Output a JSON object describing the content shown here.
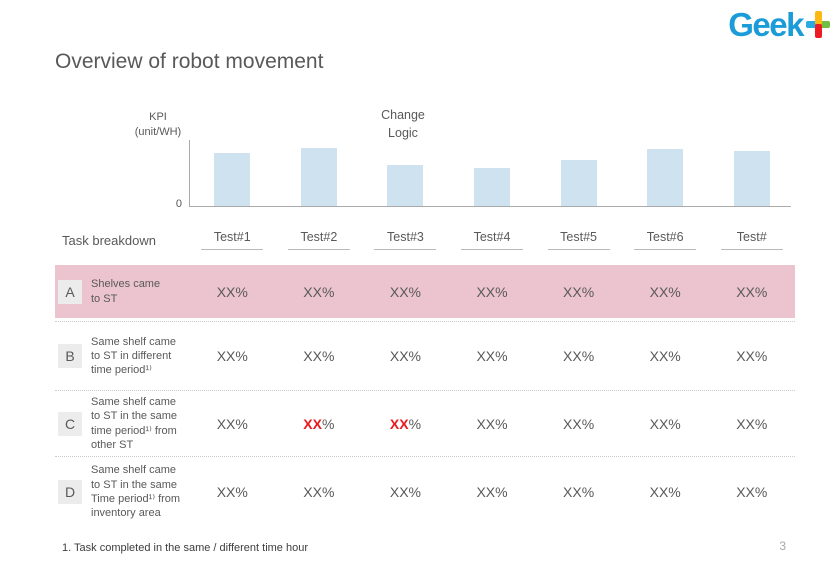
{
  "slide": {
    "title": "Overview of robot movement",
    "footnote": "1. Task completed in the same / different time hour",
    "page_number": "3",
    "logo": {
      "text": "Geek",
      "text_color": "#1b9cd8",
      "plus_colors": {
        "top": "#fdb913",
        "bottom": "#ed1c24",
        "left": "#29abe2",
        "right": "#72bf44"
      }
    }
  },
  "chart_data": {
    "type": "bar",
    "categories": [
      "Test#1",
      "Test#2",
      "Test#3",
      "Test#4",
      "Test#5",
      "Test#6",
      "Test#"
    ],
    "values": [
      80,
      88,
      62,
      57,
      70,
      86,
      83
    ],
    "title": "",
    "xlabel": "",
    "ylabel": "KPI\n(unit/WH)",
    "ylim": [
      0,
      100
    ],
    "zero_tick": "0",
    "annotation": "Change\nLogic",
    "bar_color": "#cfe2ef",
    "grid": false,
    "legend": false
  },
  "table": {
    "header_left": "Task breakdown",
    "columns": [
      "Test#1",
      "Test#2",
      "Test#3",
      "Test#4",
      "Test#5",
      "Test#6",
      "Test#"
    ],
    "highlight_color": "#ebc4cf",
    "red_color": "#e8191f",
    "rows": [
      {
        "id": "A",
        "label": "Shelves came\nto ST",
        "values": [
          "XX%",
          "XX%",
          "XX%",
          "XX%",
          "XX%",
          "XX%",
          "XX%"
        ],
        "highlight": true,
        "red_cols": []
      },
      {
        "id": "B",
        "label": "Same shelf came\nto ST in different\ntime period¹⁾",
        "values": [
          "XX%",
          "XX%",
          "XX%",
          "XX%",
          "XX%",
          "XX%",
          "XX%"
        ],
        "highlight": false,
        "red_cols": []
      },
      {
        "id": "C",
        "label": "Same shelf came\nto ST in the same\ntime period¹⁾ from\nother ST",
        "values": [
          "XX%",
          "XX%",
          "XX%",
          "XX%",
          "XX%",
          "XX%",
          "XX%"
        ],
        "highlight": false,
        "red_cols": [
          1,
          2
        ]
      },
      {
        "id": "D",
        "label": "Same shelf came\nto ST in the same\nTime period¹⁾ from\ninventory area",
        "values": [
          "XX%",
          "XX%",
          "XX%",
          "XX%",
          "XX%",
          "XX%",
          "XX%"
        ],
        "highlight": false,
        "red_cols": []
      }
    ]
  }
}
